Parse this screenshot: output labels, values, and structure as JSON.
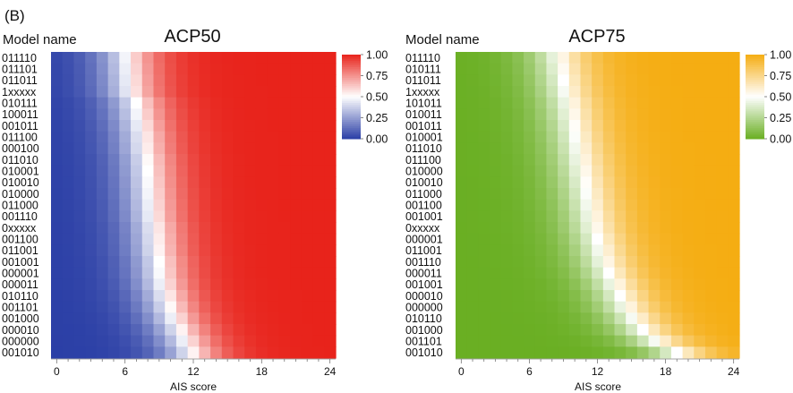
{
  "figure_label": "(B)",
  "chart_data": [
    {
      "type": "heatmap",
      "title": "ACP50",
      "row_header": "Model name",
      "xlabel": "AIS score",
      "x": [
        0,
        1,
        2,
        3,
        4,
        5,
        6,
        7,
        8,
        9,
        10,
        11,
        12,
        13,
        14,
        15,
        16,
        17,
        18,
        19,
        20,
        21,
        22,
        23,
        24
      ],
      "x_ticks": [
        "0",
        "6",
        "12",
        "18",
        "24"
      ],
      "xlim": [
        0,
        24
      ],
      "rows": [
        "011110",
        "011101",
        "011011",
        "1xxxxx",
        "010111",
        "100011",
        "001011",
        "011100",
        "000100",
        "011010",
        "010001",
        "010010",
        "010000",
        "011000",
        "001110",
        "0xxxxx",
        "001100",
        "011001",
        "001001",
        "000001",
        "000011",
        "010110",
        "001101",
        "001000",
        "000010",
        "000000",
        "001010"
      ],
      "midpoints": [
        6.2,
        6.3,
        6.4,
        6.5,
        7.0,
        7.2,
        7.4,
        7.6,
        7.7,
        7.9,
        8.0,
        8.1,
        8.2,
        8.3,
        8.4,
        8.6,
        8.7,
        8.8,
        9.0,
        9.1,
        9.3,
        9.6,
        9.9,
        10.3,
        10.8,
        11.3,
        11.8
      ],
      "colorbar": {
        "ticks": [
          "1.00",
          "0.75",
          "0.50",
          "0.25",
          "0.00"
        ],
        "range": [
          0,
          1
        ],
        "low": "#2b3fa6",
        "mid": "#ffffff",
        "high": "#e8231b"
      }
    },
    {
      "type": "heatmap",
      "title": "ACP75",
      "row_header": "Model name",
      "xlabel": "AIS score",
      "x": [
        0,
        1,
        2,
        3,
        4,
        5,
        6,
        7,
        8,
        9,
        10,
        11,
        12,
        13,
        14,
        15,
        16,
        17,
        18,
        19,
        20,
        21,
        22,
        23,
        24
      ],
      "x_ticks": [
        "0",
        "6",
        "12",
        "18",
        "24"
      ],
      "xlim": [
        0,
        24
      ],
      "rows": [
        "011110",
        "010111",
        "011011",
        "1xxxxx",
        "101011",
        "010011",
        "001011",
        "010001",
        "011010",
        "011100",
        "010000",
        "010010",
        "011000",
        "001100",
        "001001",
        "0xxxxx",
        "000001",
        "011001",
        "001110",
        "000011",
        "001001",
        "000010",
        "000000",
        "010110",
        "001000",
        "001101",
        "001010"
      ],
      "midpoints": [
        8.6,
        8.8,
        9.0,
        9.2,
        9.5,
        9.7,
        9.9,
        10.1,
        10.3,
        10.5,
        10.7,
        10.9,
        11.1,
        11.3,
        11.5,
        11.7,
        12.0,
        12.3,
        12.6,
        13.0,
        13.5,
        14.0,
        14.5,
        15.2,
        16.0,
        17.2,
        19.0
      ],
      "colorbar": {
        "ticks": [
          "1.00",
          "0.75",
          "0.50",
          "0.25",
          "0.00"
        ],
        "range": [
          0,
          1
        ],
        "low": "#6aaf23",
        "mid": "#ffffff",
        "high": "#f5ad12"
      }
    }
  ]
}
